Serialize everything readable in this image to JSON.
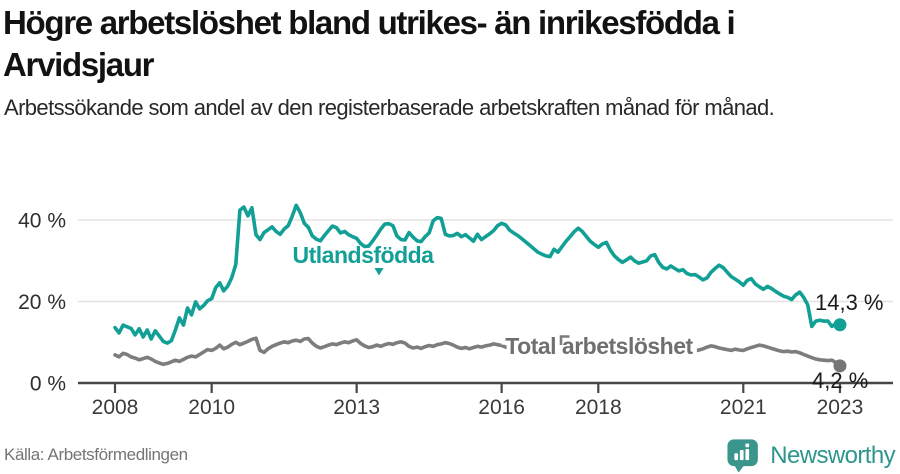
{
  "header": {
    "title": "Högre arbetslöshet bland utrikes- än inrikesfödda i Arvidsjaur",
    "subtitle": "Arbetssökande som andel av den registerbaserade arbetskraften månad för månad."
  },
  "footer": {
    "source": "Källa: Arbetsförmedlingen",
    "brand": "Newsworthy"
  },
  "colors": {
    "foreign_born_line": "#12a096",
    "total_line": "#7d7d7d",
    "total_label": "#6f6f6f",
    "grid": "#e3e3e3",
    "axis": "#474747",
    "tick_text": "#3a3a3a",
    "value_text": "#1a1a1a",
    "brand_teal": "#3a968c"
  },
  "chart_data": {
    "type": "line",
    "title": "Högre arbetslöshet bland utrikes- än inrikesfödda i Arvidsjaur",
    "subtitle": "Arbetssökande som andel av den registerbaserade arbetskraften månad för månad.",
    "x_unit": "monthly",
    "x_start_year": 2008,
    "xlim": [
      2007.24,
      2024.1
    ],
    "ylim": [
      0,
      45
    ],
    "grid": "horizontal",
    "y_ticks": [
      {
        "value": 0,
        "label": "0 %"
      },
      {
        "value": 20,
        "label": "20 %"
      },
      {
        "value": 40,
        "label": "40 %"
      }
    ],
    "x_ticks": [
      {
        "year": 2008,
        "label": "2008"
      },
      {
        "year": 2010,
        "label": "2010"
      },
      {
        "year": 2013,
        "label": "2013"
      },
      {
        "year": 2016,
        "label": "2016"
      },
      {
        "year": 2018,
        "label": "2018"
      },
      {
        "year": 2021,
        "label": "2021"
      },
      {
        "year": 2023,
        "label": "2023"
      }
    ],
    "series": [
      {
        "name": "Utlandsfödda",
        "color": "#12a096",
        "end_label": "14,3 %",
        "end_value": 14.3,
        "values": [
          13.6,
          12.3,
          14.2,
          13.8,
          13.4,
          11.8,
          13.3,
          11.3,
          13.0,
          10.8,
          12.8,
          11.5,
          10.2,
          9.8,
          10.4,
          13.0,
          16.0,
          14.2,
          18.4,
          16.7,
          19.9,
          18.2,
          19.0,
          20.2,
          20.7,
          23.4,
          24.6,
          22.6,
          23.8,
          25.9,
          29.1,
          42.4,
          43.2,
          41.0,
          43.0,
          36.4,
          35.2,
          36.9,
          37.6,
          38.3,
          37.2,
          36.5,
          37.8,
          38.6,
          40.9,
          43.6,
          41.8,
          39.2,
          38.2,
          36.1,
          35.3,
          34.9,
          36.2,
          37.4,
          38.5,
          38.1,
          36.8,
          37.2,
          36.4,
          35.9,
          35.5,
          34.2,
          33.5,
          33.6,
          34.9,
          36.3,
          37.8,
          39.0,
          39.1,
          38.6,
          36.1,
          35.2,
          35.1,
          36.9,
          35.8,
          34.9,
          34.7,
          35.9,
          36.8,
          39.8,
          40.6,
          40.4,
          36.5,
          36.1,
          36.2,
          36.7,
          35.9,
          36.4,
          35.6,
          34.8,
          36.5,
          35.2,
          35.9,
          36.6,
          37.4,
          38.6,
          39.2,
          38.8,
          37.5,
          36.8,
          36.2,
          35.4,
          34.6,
          33.8,
          32.9,
          32.1,
          31.6,
          31.2,
          31.0,
          32.8,
          32.1,
          33.5,
          34.8,
          35.9,
          37.1,
          38.0,
          37.2,
          36.0,
          34.8,
          34.0,
          33.3,
          34.1,
          34.5,
          32.6,
          31.2,
          30.3,
          29.6,
          30.2,
          30.9,
          30.0,
          29.4,
          29.7,
          30.0,
          31.2,
          31.5,
          29.6,
          28.4,
          28.0,
          28.7,
          28.1,
          27.5,
          27.8,
          26.9,
          26.5,
          26.6,
          26.0,
          25.3,
          25.8,
          27.2,
          28.1,
          28.9,
          28.3,
          27.2,
          26.1,
          25.5,
          24.8,
          24.0,
          25.2,
          25.6,
          24.3,
          23.6,
          23.0,
          23.7,
          23.2,
          22.5,
          21.9,
          21.3,
          21.0,
          20.5,
          21.6,
          22.3,
          21.0,
          19.2,
          13.9,
          15.2,
          15.4,
          15.2,
          15.2,
          13.9,
          14.6,
          14.3
        ]
      },
      {
        "name": "Total arbetslöshet",
        "color": "#7d7d7d",
        "end_label": "4,2 %",
        "end_value": 4.2,
        "values": [
          6.9,
          6.4,
          7.3,
          7.0,
          6.4,
          6.1,
          5.7,
          6.0,
          6.3,
          5.9,
          5.3,
          4.9,
          4.6,
          4.8,
          5.2,
          5.6,
          5.3,
          5.8,
          6.3,
          6.6,
          6.4,
          7.0,
          7.6,
          8.2,
          8.0,
          8.5,
          9.3,
          8.4,
          8.8,
          9.5,
          10.0,
          9.4,
          9.8,
          10.2,
          10.7,
          11.0,
          8.0,
          7.5,
          8.4,
          9.0,
          9.4,
          9.8,
          10.1,
          9.9,
          10.3,
          10.5,
          10.2,
          10.8,
          10.9,
          9.8,
          9.0,
          8.6,
          8.9,
          9.3,
          9.6,
          9.4,
          9.8,
          10.1,
          9.9,
          10.3,
          10.6,
          9.7,
          9.1,
          8.7,
          8.9,
          9.3,
          9.0,
          9.4,
          9.7,
          9.5,
          9.9,
          10.1,
          9.8,
          9.0,
          8.6,
          8.8,
          8.5,
          8.9,
          9.2,
          9.0,
          9.4,
          9.6,
          9.9,
          9.7,
          9.3,
          8.8,
          8.5,
          8.7,
          8.4,
          8.7,
          9.0,
          8.8,
          9.1,
          9.3,
          9.6,
          9.4,
          9.2,
          8.8,
          8.5,
          8.3,
          8.0,
          7.8,
          8.1,
          8.4,
          8.2,
          8.6,
          8.8,
          8.5,
          8.3,
          8.6,
          8.2,
          8.0,
          8.3,
          8.1,
          7.9,
          8.2,
          8.5,
          8.3,
          8.7,
          8.4,
          8.6,
          8.8,
          8.4,
          8.1,
          7.9,
          7.7,
          8.0,
          8.2,
          7.9,
          8.1,
          8.3,
          8.0,
          8.2,
          8.5,
          8.1,
          7.8,
          7.6,
          7.9,
          8.1,
          7.8,
          7.6,
          7.9,
          7.7,
          7.8,
          7.9,
          8.1,
          8.4,
          8.8,
          9.1,
          8.9,
          8.6,
          8.4,
          8.2,
          8.0,
          8.3,
          8.1,
          8.0,
          8.4,
          8.7,
          9.0,
          9.3,
          9.1,
          8.8,
          8.5,
          8.2,
          7.9,
          7.7,
          7.8,
          7.6,
          7.7,
          7.4,
          7.0,
          6.6,
          6.2,
          5.9,
          5.7,
          5.6,
          5.5,
          5.6,
          5.0,
          4.2
        ]
      }
    ]
  }
}
